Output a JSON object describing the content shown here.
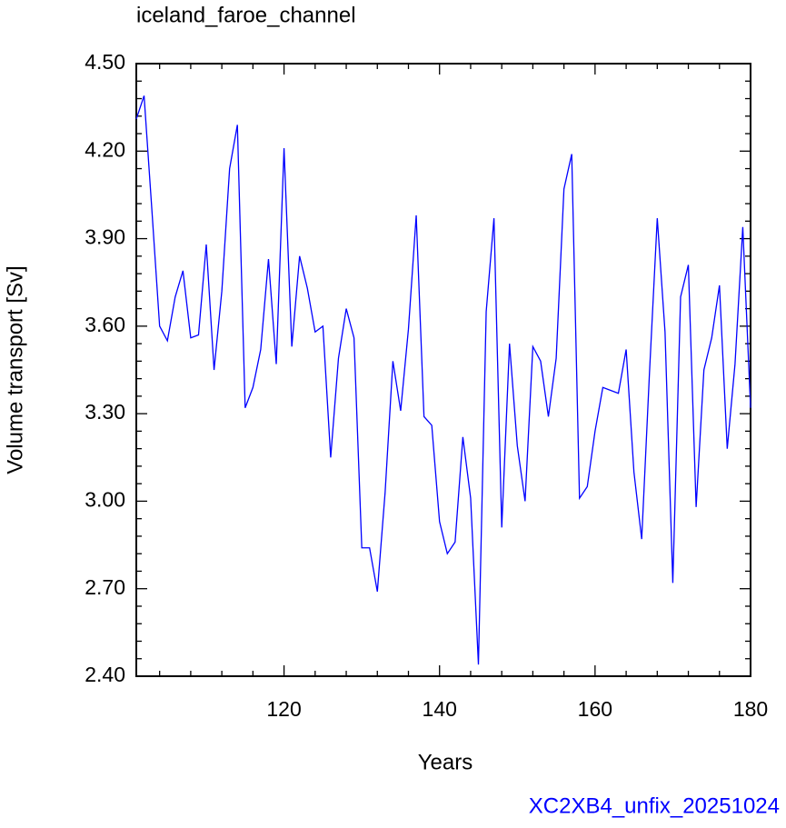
{
  "chart_data": {
    "type": "line",
    "title": "iceland_faroe_channel",
    "xlabel": "Years",
    "ylabel": "Volume transport [Sv]",
    "footer": "XC2XB4_unfix_20251024",
    "x": [
      101,
      102,
      103,
      104,
      105,
      106,
      107,
      108,
      109,
      110,
      111,
      112,
      113,
      114,
      115,
      116,
      117,
      118,
      119,
      120,
      121,
      122,
      123,
      124,
      125,
      126,
      127,
      128,
      129,
      130,
      131,
      132,
      133,
      134,
      135,
      136,
      137,
      138,
      139,
      140,
      141,
      142,
      143,
      144,
      145,
      146,
      147,
      148,
      149,
      150,
      151,
      152,
      153,
      154,
      155,
      156,
      157,
      158,
      159,
      160,
      161,
      162,
      163,
      164,
      165,
      166,
      167,
      168,
      169,
      170,
      171,
      172,
      173,
      174,
      175,
      176,
      177,
      178,
      179,
      180
    ],
    "series": [
      {
        "name": "iceland_faroe_channel",
        "color": "#0000ff",
        "values": [
          4.31,
          4.39,
          4.0,
          3.6,
          3.55,
          3.7,
          3.79,
          3.56,
          3.57,
          3.88,
          3.45,
          3.72,
          4.14,
          4.29,
          3.32,
          3.39,
          3.52,
          3.83,
          3.47,
          4.21,
          3.53,
          3.84,
          3.73,
          3.58,
          3.6,
          3.15,
          3.49,
          3.66,
          3.56,
          2.84,
          2.84,
          2.69,
          3.03,
          3.48,
          3.31,
          3.59,
          3.98,
          3.29,
          3.26,
          2.93,
          2.82,
          2.86,
          3.22,
          3.01,
          2.44,
          3.65,
          3.97,
          2.91,
          3.54,
          3.19,
          3.0,
          3.53,
          3.48,
          3.29,
          3.49,
          4.07,
          4.19,
          3.01,
          3.05,
          3.24,
          3.39,
          3.38,
          3.37,
          3.52,
          3.1,
          2.87,
          3.44,
          3.97,
          3.58,
          2.72,
          3.7,
          3.81,
          2.98,
          3.45,
          3.56,
          3.74,
          3.18,
          3.47,
          3.94,
          3.32
        ]
      }
    ],
    "xlim": [
      101,
      180
    ],
    "xticks": [
      120,
      140,
      160,
      180
    ],
    "ylim": [
      2.4,
      4.5
    ],
    "yticks": [
      {
        "value": 2.4,
        "label": "2.40"
      },
      {
        "value": 2.7,
        "label": "2.70"
      },
      {
        "value": 3.0,
        "label": "3.00"
      },
      {
        "value": 3.3,
        "label": "3.30"
      },
      {
        "value": 3.6,
        "label": "3.60"
      },
      {
        "value": 3.9,
        "label": "3.90"
      },
      {
        "value": 4.2,
        "label": "4.20"
      },
      {
        "value": 4.5,
        "label": "4.50"
      }
    ],
    "grid": false
  }
}
